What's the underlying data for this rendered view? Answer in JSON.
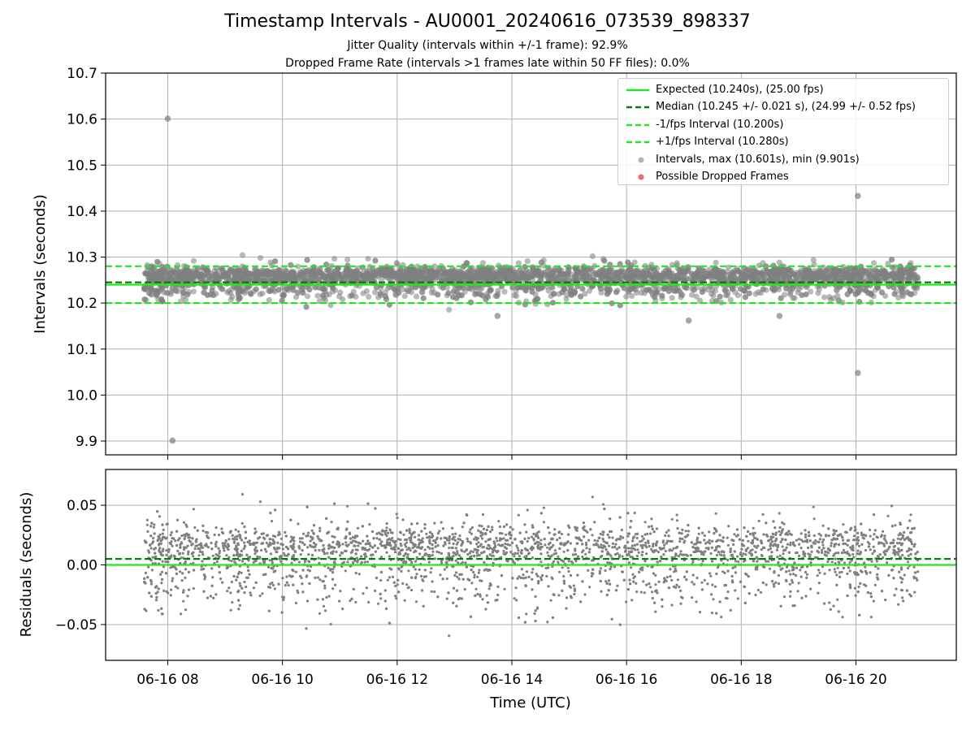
{
  "chart_data": [
    {
      "type": "scatter",
      "title": "Timestamp Intervals - AU0001_20240616_073539_898337",
      "subtitle_lines": [
        "Jitter Quality (intervals within +/-1 frame): 92.9%",
        "Dropped Frame Rate (intervals >1 frames late within 50 FF files): 0.0%"
      ],
      "ylabel": "Intervals (seconds)",
      "ylim": [
        9.87,
        10.7
      ],
      "xlim": [
        "06-16 06:55",
        "06-16 21:45"
      ],
      "y_ticks": [
        "9.9",
        "10.0",
        "10.1",
        "10.2",
        "10.3",
        "10.4",
        "10.5",
        "10.6",
        "10.7"
      ],
      "y_tick_values": [
        9.9,
        10.0,
        10.1,
        10.2,
        10.3,
        10.4,
        10.5,
        10.6,
        10.7
      ],
      "grid": true,
      "legend_position": "upper-right",
      "data_range": {
        "start": "06-16 07:35",
        "end": "06-16 21:05"
      },
      "reference_lines": [
        {
          "label": "Expected (10.240s), (25.00 fps)",
          "value": 10.24,
          "color": "#22e622",
          "style": "solid"
        },
        {
          "label": "Median (10.245 +/- 0.021 s), (24.99 +/- 0.52 fps)",
          "value": 10.245,
          "color": "#0a7a0a",
          "style": "dashed"
        },
        {
          "label": "-1/fps Interval (10.200s)",
          "value": 10.2,
          "color": "#22e622",
          "style": "dashed"
        },
        {
          "label": "+1/fps Interval (10.280s)",
          "value": 10.28,
          "color": "#22e622",
          "style": "dashed"
        }
      ],
      "series": [
        {
          "label": "Intervals, max (10.601s), min (9.901s)",
          "color": "#808080",
          "marker": "circle",
          "center": 10.245,
          "spread": 0.021,
          "max": 10.601,
          "min": 9.901
        },
        {
          "label": "Possible Dropped Frames",
          "color": "#ee4444",
          "marker": "circle",
          "count": 0
        }
      ],
      "outliers": [
        {
          "x": "06-16 08:00",
          "y": 10.601
        },
        {
          "x": "06-16 08:05",
          "y": 9.901
        },
        {
          "x": "06-16 20:02",
          "y": 10.433
        },
        {
          "x": "06-16 20:02",
          "y": 10.048
        },
        {
          "x": "06-16 17:05",
          "y": 10.162
        },
        {
          "x": "06-16 13:45",
          "y": 10.172
        },
        {
          "x": "06-16 18:40",
          "y": 10.172
        }
      ]
    },
    {
      "type": "scatter",
      "ylabel": "Residuals (seconds)",
      "xlabel": "Time (UTC)",
      "ylim": [
        -0.08,
        0.08
      ],
      "y_ticks": [
        "−0.05",
        "0.00",
        "0.05"
      ],
      "y_tick_values": [
        -0.05,
        0.0,
        0.05
      ],
      "x_ticks": [
        "06-16 08",
        "06-16 10",
        "06-16 12",
        "06-16 14",
        "06-16 16",
        "06-16 18",
        "06-16 20"
      ],
      "x_tick_values": [
        "06-16 08:00",
        "06-16 10:00",
        "06-16 12:00",
        "06-16 14:00",
        "06-16 16:00",
        "06-16 18:00",
        "06-16 20:00"
      ],
      "grid": true,
      "reference_lines": [
        {
          "value": 0.0,
          "color": "#22e622",
          "style": "solid"
        },
        {
          "value": 0.005,
          "color": "#0a7a0a",
          "style": "dashed"
        }
      ],
      "series": [
        {
          "color": "#808080",
          "marker": "dot",
          "center": 0.005,
          "spread": 0.021
        }
      ]
    }
  ]
}
